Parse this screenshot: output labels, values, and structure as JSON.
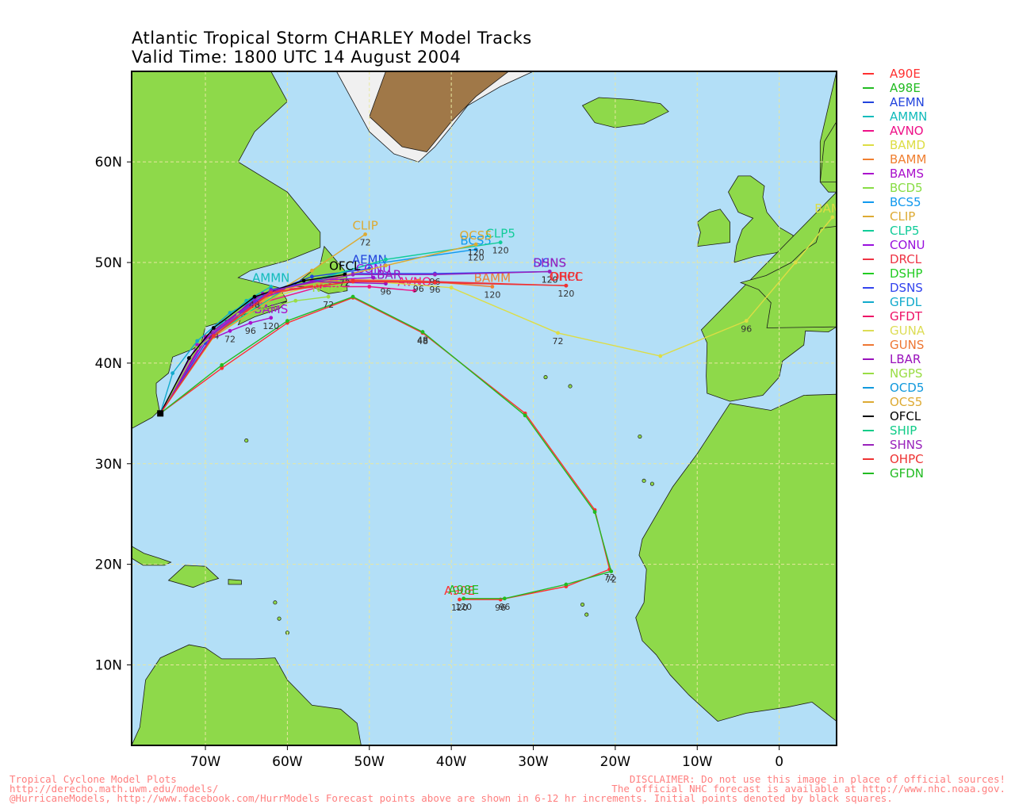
{
  "header": {
    "title": "Atlantic Tropical Storm CHARLEY Model Tracks",
    "subtitle": "Valid Time: 1800 UTC 14 August 2004"
  },
  "map": {
    "projection": "cylindrical lat-lon",
    "lon_range": [
      -79,
      7
    ],
    "lat_range": [
      2,
      69
    ],
    "grid": true,
    "lon_ticks": [
      "70W",
      "60W",
      "50W",
      "40W",
      "30W",
      "20W",
      "10W",
      "0"
    ],
    "lat_ticks": [
      "10N",
      "20N",
      "30N",
      "40N",
      "50N",
      "60N"
    ],
    "colors": {
      "ocean": "#b3dff7",
      "land": "#8ed94a",
      "grid": "#e8e8a0",
      "border": "#000000"
    }
  },
  "legend": [
    {
      "label": "A90E",
      "color": "#ff3030"
    },
    {
      "label": "A98E",
      "color": "#22bb22"
    },
    {
      "label": "AEMN",
      "color": "#2244dd"
    },
    {
      "label": "AMMN",
      "color": "#11bbbb"
    },
    {
      "label": "AVNO",
      "color": "#ee1188"
    },
    {
      "label": "BAMD",
      "color": "#dddd44"
    },
    {
      "label": "BAMM",
      "color": "#f07f30"
    },
    {
      "label": "BAMS",
      "color": "#aa11cc"
    },
    {
      "label": "BCD5",
      "color": "#88dd44"
    },
    {
      "label": "BCS5",
      "color": "#1199ee"
    },
    {
      "label": "CLIP",
      "color": "#ddaa33"
    },
    {
      "label": "CLP5",
      "color": "#11cc99"
    },
    {
      "label": "CONU",
      "color": "#9911dd"
    },
    {
      "label": "DRCL",
      "color": "#ee3344"
    },
    {
      "label": "DSHP",
      "color": "#22cc22"
    },
    {
      "label": "DSNS",
      "color": "#3344ee"
    },
    {
      "label": "GFDL",
      "color": "#11aacc"
    },
    {
      "label": "GFDT",
      "color": "#ee1166"
    },
    {
      "label": "GUNA",
      "color": "#dddd55"
    },
    {
      "label": "GUNS",
      "color": "#ee7733"
    },
    {
      "label": "LBAR",
      "color": "#9911bb"
    },
    {
      "label": "NGPS",
      "color": "#99dd44"
    },
    {
      "label": "OCD5",
      "color": "#1199dd"
    },
    {
      "label": "OCS5",
      "color": "#ddaa33"
    },
    {
      "label": "OFCL",
      "color": "#000000"
    },
    {
      "label": "SHIP",
      "color": "#11cc88"
    },
    {
      "label": "SHNS",
      "color": "#9922bb"
    },
    {
      "label": "OHPC",
      "color": "#ee3333"
    },
    {
      "label": "GFDN",
      "color": "#22bb22"
    }
  ],
  "tracks": [
    {
      "model": "A90E",
      "color": "#ff3030",
      "label": "A90E",
      "points": [
        [
          -75.5,
          35.0
        ],
        [
          -68,
          39.5
        ],
        [
          -60,
          44
        ],
        [
          -52,
          46.5
        ],
        [
          -43.5,
          43
        ],
        [
          -31,
          35
        ],
        [
          -22.5,
          25.4
        ],
        [
          -20.7,
          19.5
        ],
        [
          -26,
          17.8
        ],
        [
          -34,
          16.5
        ],
        [
          -39,
          16.5
        ]
      ],
      "hours": [
        {
          "t": "48",
          "i": 4
        },
        {
          "t": "72",
          "i": 7
        },
        {
          "t": "96",
          "i": 9
        },
        {
          "t": "120",
          "i": 10
        }
      ]
    },
    {
      "model": "A98E",
      "color": "#22bb22",
      "label": "A98E",
      "points": [
        [
          -75.5,
          35.0
        ],
        [
          -68,
          39.8
        ],
        [
          -60,
          44.2
        ],
        [
          -52,
          46.6
        ],
        [
          -43.5,
          43.1
        ],
        [
          -31,
          34.8
        ],
        [
          -22.5,
          25.2
        ],
        [
          -20.5,
          19.3
        ],
        [
          -26,
          18
        ],
        [
          -33.5,
          16.6
        ],
        [
          -38.5,
          16.6
        ]
      ],
      "hours": [
        {
          "t": "48",
          "i": 4
        },
        {
          "t": "72",
          "i": 7
        },
        {
          "t": "96",
          "i": 9
        },
        {
          "t": "120",
          "i": 10
        }
      ]
    },
    {
      "model": "AEMN",
      "color": "#2244dd",
      "label": "AEMN",
      "points": [
        [
          -75.5,
          35.0
        ],
        [
          -70,
          42
        ],
        [
          -64,
          46.5
        ],
        [
          -57,
          48.6
        ],
        [
          -50,
          49.4
        ]
      ],
      "hours": []
    },
    {
      "model": "AMMN",
      "color": "#11bbbb",
      "label": "AMMN",
      "points": [
        [
          -75.5,
          35.0
        ],
        [
          -70,
          42.5
        ],
        [
          -65,
          46.2
        ],
        [
          -62,
          47.6
        ]
      ],
      "hours": []
    },
    {
      "model": "AVNO",
      "color": "#ee1188",
      "label": "AVNO",
      "points": [
        [
          -75.5,
          35.0
        ],
        [
          -70,
          42.3
        ],
        [
          -64,
          45.8
        ],
        [
          -56,
          47.6
        ],
        [
          -50,
          47.6
        ],
        [
          -44.5,
          47.2
        ]
      ],
      "hours": []
    },
    {
      "model": "BAMD",
      "color": "#dddd44",
      "label": "BAMD",
      "points": [
        [
          -75.5,
          35.0
        ],
        [
          -69,
          42.6
        ],
        [
          -62,
          46.5
        ],
        [
          -54,
          48.4
        ],
        [
          -40,
          47.5
        ],
        [
          -27,
          43
        ],
        [
          -14.5,
          40.7
        ],
        [
          -4,
          44.2
        ],
        [
          2,
          50
        ],
        [
          6.5,
          54.5
        ]
      ],
      "hours": [
        {
          "t": "72",
          "i": 5
        },
        {
          "t": "96",
          "i": 7
        }
      ]
    },
    {
      "model": "BAMM",
      "color": "#f07f30",
      "label": "BAMM",
      "points": [
        [
          -75.5,
          35.0
        ],
        [
          -69,
          42.8
        ],
        [
          -62,
          46.8
        ],
        [
          -54,
          48.3
        ],
        [
          -44,
          48.2
        ],
        [
          -35,
          47.6
        ]
      ],
      "hours": [
        {
          "t": "96",
          "i": 4
        },
        {
          "t": "120",
          "i": 5
        }
      ]
    },
    {
      "model": "BAMS",
      "color": "#aa11cc",
      "label": "BAMS",
      "points": [
        [
          -75.5,
          35.0
        ],
        [
          -71,
          41.8
        ],
        [
          -67,
          43.2
        ],
        [
          -64.5,
          44
        ],
        [
          -62,
          44.5
        ]
      ],
      "hours": [
        {
          "t": "72",
          "i": 2
        },
        {
          "t": "96",
          "i": 3
        },
        {
          "t": "120",
          "i": 4
        }
      ]
    },
    {
      "model": "BCS5",
      "color": "#1199ee",
      "label": "BCS5",
      "points": [
        [
          -75.5,
          35.0
        ],
        [
          -69,
          42.7
        ],
        [
          -62,
          47
        ],
        [
          -50,
          49.8
        ],
        [
          -37,
          51.3
        ]
      ],
      "hours": [
        {
          "t": "120",
          "i": 4
        }
      ]
    },
    {
      "model": "CLIP",
      "color": "#ddaa33",
      "label": "CLIP",
      "points": [
        [
          -75.5,
          35.0
        ],
        [
          -70,
          42.7
        ],
        [
          -63,
          46.2
        ],
        [
          -57,
          49.2
        ],
        [
          -50.5,
          52.8
        ]
      ],
      "hours": [
        {
          "t": "72",
          "i": 4
        }
      ]
    },
    {
      "model": "CLP5",
      "color": "#11cc99",
      "label": "CLP5",
      "points": [
        [
          -75.5,
          35.0
        ],
        [
          -69,
          42.8
        ],
        [
          -60,
          47.5
        ],
        [
          -48,
          50.3
        ],
        [
          -34,
          52
        ]
      ],
      "hours": [
        {
          "t": "120",
          "i": 4
        }
      ]
    },
    {
      "model": "CONU",
      "color": "#9911dd",
      "label": "CONU",
      "points": [
        [
          -75.5,
          35.0
        ],
        [
          -70,
          42.4
        ],
        [
          -64,
          46.2
        ],
        [
          -57,
          48.2
        ],
        [
          -49.5,
          48.5
        ]
      ],
      "hours": []
    },
    {
      "model": "DRCL",
      "color": "#ee3344",
      "label": "DRCL",
      "points": [
        [
          -75.5,
          35.0
        ],
        [
          -69,
          42.8
        ],
        [
          -62,
          47.1
        ],
        [
          -52,
          48.2
        ],
        [
          -42,
          48.1
        ],
        [
          -26,
          47.7
        ]
      ],
      "hours": [
        {
          "t": "96",
          "i": 4
        },
        {
          "t": "120",
          "i": 5
        }
      ]
    },
    {
      "model": "DSNS",
      "color": "#3344ee",
      "label": "DSNS",
      "points": [
        [
          -75.5,
          35.0
        ],
        [
          -69,
          42.9
        ],
        [
          -62,
          47.3
        ],
        [
          -52,
          48.9
        ],
        [
          -42,
          48.9
        ],
        [
          -28,
          49.1
        ]
      ],
      "hours": [
        {
          "t": "96",
          "i": 4
        },
        {
          "t": "120",
          "i": 5
        }
      ]
    },
    {
      "model": "GFDL",
      "color": "#11aacc",
      "label": "",
      "points": [
        [
          -75.5,
          35.0
        ],
        [
          -74,
          39
        ],
        [
          -71,
          42.2
        ],
        [
          -67,
          45
        ],
        [
          -62,
          47.2
        ]
      ],
      "hours": []
    },
    {
      "model": "LBAR",
      "color": "#9911bb",
      "label": "LBAR",
      "points": [
        [
          -75.5,
          35.0
        ],
        [
          -70,
          42.6
        ],
        [
          -63,
          46.9
        ],
        [
          -57,
          48.1
        ],
        [
          -48,
          47.9
        ]
      ],
      "hours": [
        {
          "t": "96",
          "i": 4
        }
      ]
    },
    {
      "model": "NGPS",
      "color": "#99dd44",
      "label": "NGPS",
      "points": [
        [
          -75.5,
          35.0
        ],
        [
          -71,
          41.5
        ],
        [
          -66,
          44.8
        ],
        [
          -59,
          46.2
        ],
        [
          -55,
          46.6
        ]
      ],
      "hours": [
        {
          "t": "72",
          "i": 4
        }
      ]
    },
    {
      "model": "OCS5",
      "color": "#ddaa33",
      "label": "OCS5",
      "points": [
        [
          -75.5,
          35.0
        ],
        [
          -69,
          42.6
        ],
        [
          -60,
          47.4
        ],
        [
          -48,
          49.7
        ],
        [
          -37,
          51.8
        ]
      ],
      "hours": [
        {
          "t": "120",
          "i": 4
        }
      ]
    },
    {
      "model": "OFCL",
      "color": "#000000",
      "label": "OFCL",
      "points": [
        [
          -75.5,
          35.0
        ],
        [
          -72,
          40.5
        ],
        [
          -69,
          43.5
        ],
        [
          -64,
          46.6
        ],
        [
          -58,
          48.2
        ],
        [
          -53,
          48.8
        ]
      ],
      "hours": [
        {
          "t": "24",
          "i": 2
        },
        {
          "t": "48",
          "i": 3
        },
        {
          "t": "72",
          "i": 5
        }
      ]
    },
    {
      "model": "SHNS",
      "color": "#9922bb",
      "label": "SHNS",
      "points": [
        [
          -75.5,
          35.0
        ],
        [
          -69,
          42.9
        ],
        [
          -62,
          47.2
        ],
        [
          -52,
          48.8
        ],
        [
          -42,
          48.8
        ],
        [
          -28,
          49.1
        ]
      ],
      "hours": [
        {
          "t": "120",
          "i": 5
        }
      ]
    },
    {
      "model": "OHPC",
      "color": "#ee3333",
      "label": "OHPC",
      "points": [
        [
          -75.5,
          35.0
        ],
        [
          -69,
          42.7
        ],
        [
          -62,
          47.0
        ],
        [
          -52,
          48.1
        ],
        [
          -42,
          48.0
        ],
        [
          -26,
          47.7
        ]
      ],
      "hours": []
    }
  ],
  "footer": {
    "left": [
      "Tropical Cyclone Model Plots",
      "http://derecho.math.uwm.edu/models/",
      "@HurricaneModels, http://www.facebook.com/HurrModels  Forecast points above are shown in 6-12 hr increments. Initial points denoted by black squares."
    ],
    "right": [
      "DISCLAIMER: Do not use this image in place of official sources!",
      "The official NHC forecast is available at http://www.nhc.noaa.gov."
    ]
  }
}
